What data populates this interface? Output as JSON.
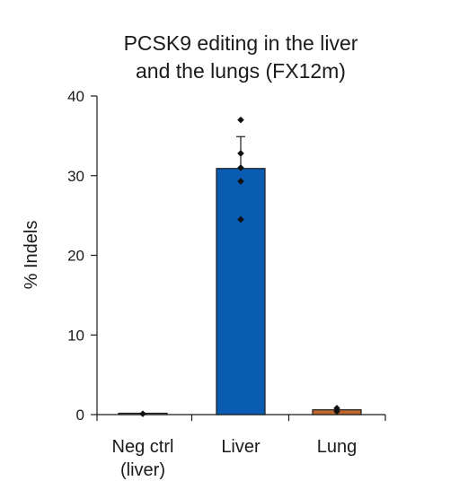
{
  "chart_data": {
    "type": "bar",
    "title_lines": [
      "PCSK9 editing in the liver",
      "and the lungs (FX12m)"
    ],
    "ylabel": "% Indels",
    "xlabel": "",
    "ylim": [
      0,
      40
    ],
    "yticks": [
      0,
      10,
      20,
      30,
      40
    ],
    "categories": [
      {
        "lines": [
          "Neg ctrl",
          "(liver)"
        ]
      },
      {
        "lines": [
          "Liver"
        ]
      },
      {
        "lines": [
          "Lung"
        ]
      }
    ],
    "values": [
      0.1,
      30.9,
      0.6
    ],
    "error_sd": [
      0,
      4.0,
      0
    ],
    "points": [
      [
        0.1
      ],
      [
        37.0,
        32.8,
        31.0,
        29.3,
        24.5
      ],
      [
        0.4,
        0.8
      ]
    ],
    "bar_colors": [
      "#9a9a9a",
      "#0a5cb3",
      "#c0672e"
    ],
    "grid": false,
    "legend": "none"
  }
}
